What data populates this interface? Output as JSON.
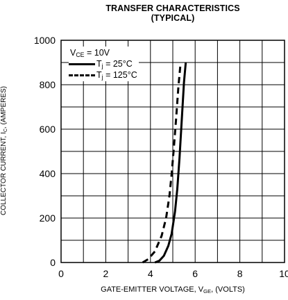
{
  "chart_data": {
    "type": "line",
    "title": "TRANSFER CHARACTERISTICS",
    "subtitle": "(TYPICAL)",
    "xlabel": {
      "prefix": "GATE-EMITTER VOLTAGE, V",
      "sub": "GE",
      "suffix": ", (VOLTS)"
    },
    "ylabel": {
      "prefix": "COLLECTOR CURRENT, I",
      "sub": "C",
      "suffix": ", (AMPERES)"
    },
    "xlim": [
      0,
      10
    ],
    "ylim": [
      0,
      1000
    ],
    "x_ticks": [
      "0",
      "2",
      "4",
      "6",
      "8",
      "10"
    ],
    "y_ticks": [
      "0",
      "200",
      "400",
      "600",
      "800",
      "1000"
    ],
    "grid": true,
    "legend_position": "top-left",
    "legend_header": {
      "prefix": "V",
      "sub": "CE",
      "suffix": " = 10V"
    },
    "series": [
      {
        "name": "T_j = 25°C",
        "label_prefix": "T",
        "label_sub": "j",
        "label_suffix": " = 25°C",
        "style": "solid",
        "color": "#000000",
        "x": [
          4.2,
          4.4,
          4.6,
          4.8,
          4.95,
          5.1,
          5.2,
          5.3,
          5.4,
          5.5,
          5.58
        ],
        "y": [
          0,
          8,
          30,
          75,
          130,
          230,
          330,
          470,
          640,
          810,
          900
        ]
      },
      {
        "name": "T_j = 125°C",
        "label_prefix": "T",
        "label_sub": "j",
        "label_suffix": " = 125°C",
        "style": "dashed",
        "color": "#000000",
        "x": [
          3.65,
          3.9,
          4.2,
          4.5,
          4.7,
          4.85,
          4.95,
          5.05,
          5.15,
          5.25,
          5.35
        ],
        "y": [
          0,
          15,
          50,
          120,
          200,
          300,
          400,
          520,
          650,
          790,
          900
        ]
      }
    ]
  }
}
